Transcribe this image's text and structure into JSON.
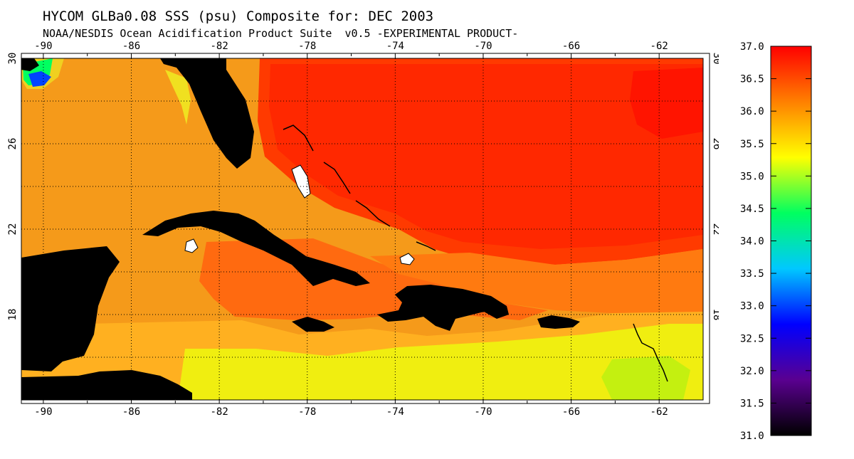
{
  "header": {
    "title": "HYCOM GLBa0.08 SSS (psu) Composite for: DEC 2003",
    "subtitle": "NOAA/NESDIS Ocean Acidification Product Suite  v0.5 -EXPERIMENTAL PRODUCT-"
  },
  "map": {
    "lon_range": [
      -91,
      -60
    ],
    "lat_range": [
      14,
      30
    ],
    "lon_ticks": [
      "-90",
      "-86",
      "-82",
      "-78",
      "-74",
      "-70",
      "-66",
      "-62"
    ],
    "lat_ticks": [
      "30",
      "26",
      "22",
      "18"
    ],
    "land_color": "#000000",
    "grid_style": "dotted"
  },
  "colorbar": {
    "ticks": [
      "37.0",
      "36.5",
      "36.0",
      "35.5",
      "35.0",
      "34.5",
      "34.0",
      "33.5",
      "33.0",
      "32.5",
      "32.0",
      "31.5",
      "31.0"
    ],
    "min": 31.0,
    "max": 37.0,
    "stops": [
      "#000000",
      "#5a0090",
      "#0000ff",
      "#00c8ff",
      "#00ff60",
      "#ffff00",
      "#ff8000",
      "#ff0000"
    ]
  }
}
